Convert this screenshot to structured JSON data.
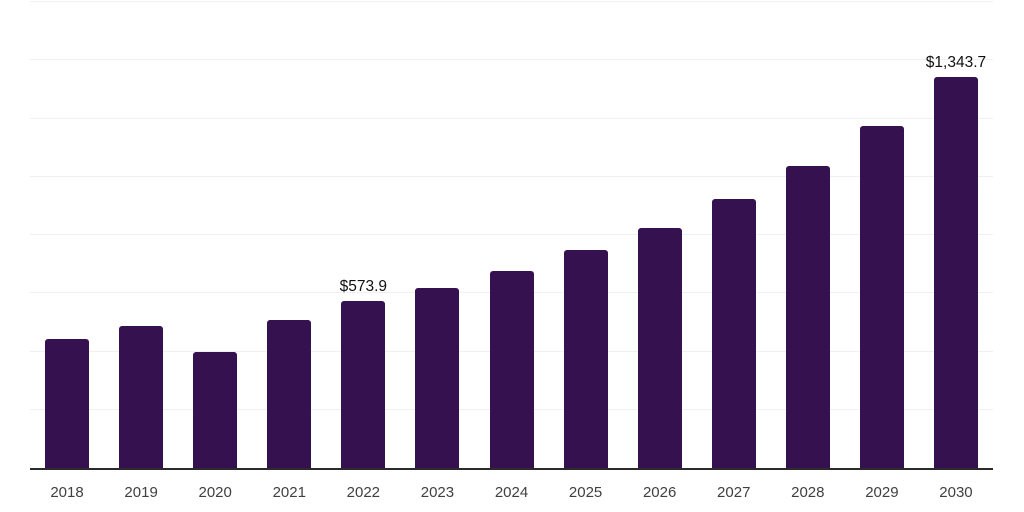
{
  "chart_data": {
    "type": "bar",
    "title": "",
    "xlabel": "",
    "ylabel": "",
    "categories": [
      "2018",
      "2019",
      "2020",
      "2021",
      "2022",
      "2023",
      "2024",
      "2025",
      "2026",
      "2027",
      "2028",
      "2029",
      "2030"
    ],
    "values": [
      442,
      487,
      400,
      509,
      573.9,
      618,
      677,
      748,
      825,
      922,
      1038,
      1175,
      1343.7
    ],
    "data_labels": [
      "",
      "",
      "",
      "",
      "$573.9",
      "",
      "",
      "",
      "",
      "",
      "",
      "",
      "$1,343.7"
    ],
    "ylim": [
      0,
      1600
    ],
    "grid_step": 200,
    "grid": true,
    "legend_position": "none",
    "colors": {
      "bar": "#36114F",
      "gridline": "#f0f0f0",
      "axis_line": "#2b2b2b",
      "tick_label": "#404040",
      "data_label": "#111111",
      "background": "#ffffff"
    }
  }
}
